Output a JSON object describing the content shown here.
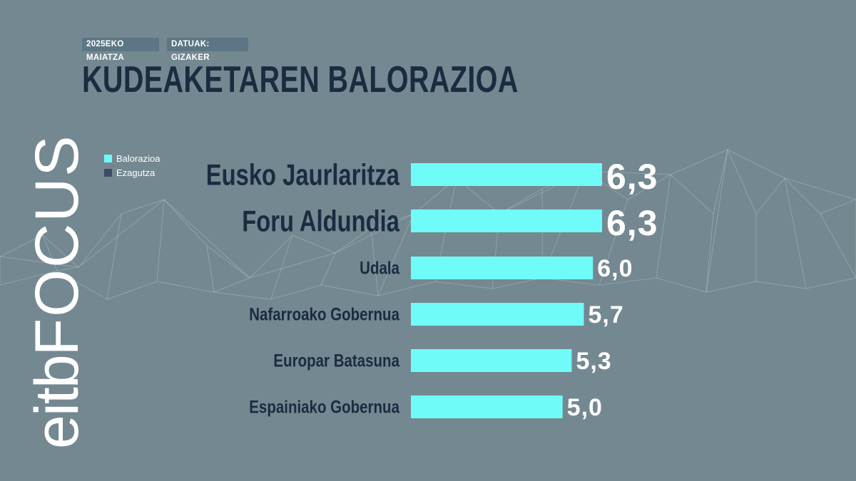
{
  "header": {
    "date_tag": "2025EKO MAIATZA",
    "source_tag": "DATUAK: GIZAKER",
    "title": "KUDEAKETAREN BALORAZIOA"
  },
  "logo": {
    "brand": "eitb",
    "product": "FOCUS"
  },
  "colors": {
    "background": "#748891",
    "bar": "#6ffcf9",
    "title_text": "#1c2b40",
    "label_text": "#1c2b40",
    "value_text": "#ffffff",
    "tag_background": "#5d7686"
  },
  "chart_data": {
    "type": "bar",
    "orientation": "horizontal",
    "title": "KUDEAKETAREN BALORAZIOA",
    "legend": {
      "placement": "top-left",
      "entries": [
        {
          "label": "Balorazioa",
          "color": "#6ffcf9"
        },
        {
          "label": "Ezagutza",
          "color": "#3d4a63"
        }
      ]
    },
    "categories": [
      "Eusko Jaurlaritza",
      "Foru Aldundia",
      "Udala",
      "Nafarroako Gobernua",
      "Europar Batasuna",
      "Espainiako Gobernua"
    ],
    "series": [
      {
        "name": "Balorazioa",
        "values": [
          6.3,
          6.3,
          6.0,
          5.7,
          5.3,
          5.0
        ],
        "value_labels": [
          "6,3",
          "6,3",
          "6,0",
          "5,7",
          "5,3",
          "5,0"
        ]
      }
    ],
    "grid": false
  }
}
